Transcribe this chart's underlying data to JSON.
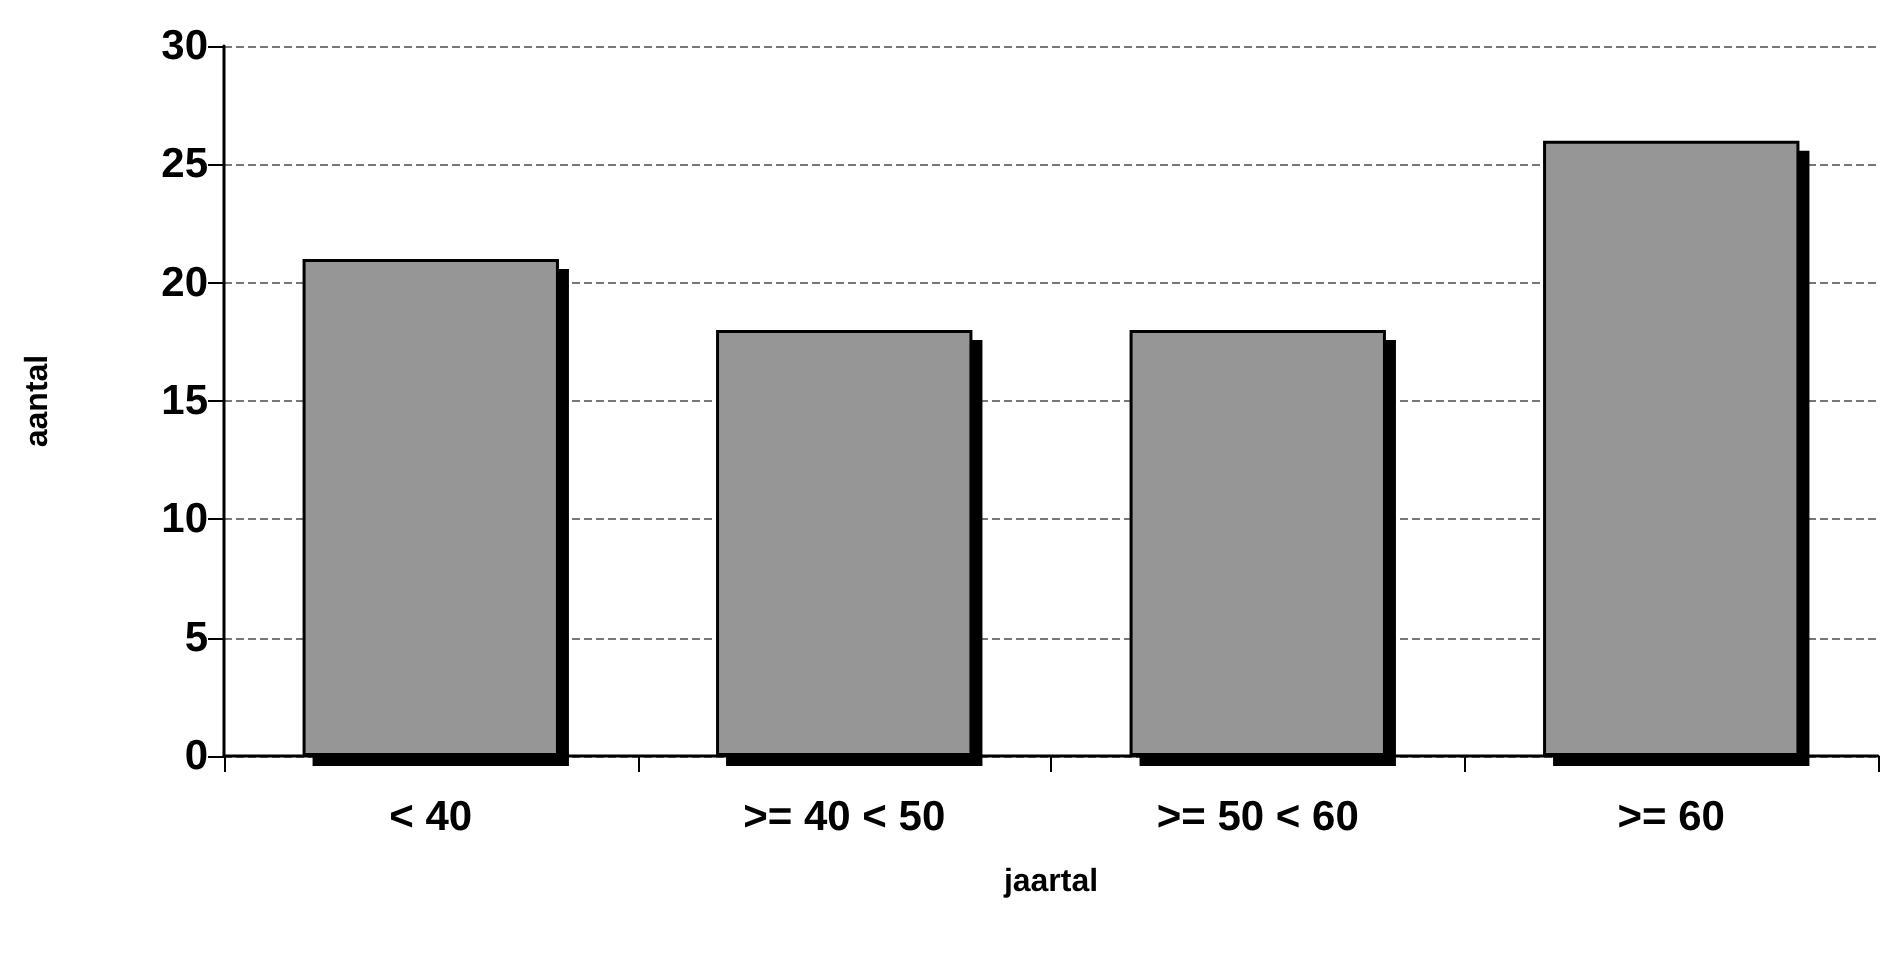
{
  "chart_data": {
    "type": "bar",
    "xlabel": "jaartal",
    "ylabel": "aantal",
    "categories": [
      "< 40",
      ">= 40 < 50",
      ">= 50 < 60",
      ">= 60"
    ],
    "values": [
      21,
      18,
      18,
      26
    ],
    "color": "#969696",
    "ylim": [
      0,
      30
    ],
    "yticks": [
      0,
      5,
      10,
      15,
      20,
      25,
      30
    ],
    "grid": "y"
  }
}
